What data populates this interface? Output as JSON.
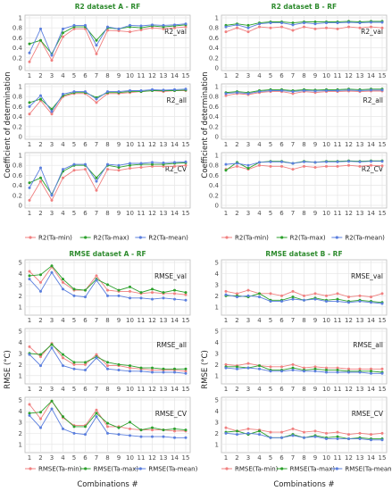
{
  "figure": {
    "blocks": [
      {
        "id": "r2a",
        "title": "R2 dataset A - RF",
        "ylabel": "",
        "xlabel": "",
        "ylim": [
          0,
          1
        ],
        "yticks": [
          "0",
          "0.2",
          "0.4",
          "0.6",
          "0.8",
          "1"
        ],
        "show_xticks": true,
        "panels": [
          "R2_val",
          "R2_all",
          "R2_CV"
        ],
        "legend": [
          "R2(Ta-min)",
          "R2(Ta-max)",
          "R2(Ta-mean)"
        ]
      },
      {
        "id": "r2b",
        "title": "R2 dataset B - RF",
        "ylabel": "",
        "xlabel": "",
        "ylim": [
          0,
          1
        ],
        "yticks": [
          "0",
          "0.2",
          "0.4",
          "0.6",
          "0.8",
          "1"
        ],
        "show_xticks": true,
        "panels": [
          "R2_val",
          "R2_all",
          "R2_CV"
        ],
        "legend": [
          "R2(Ta-min)",
          "R2(Ta-max)",
          "R2(Ta-mean)"
        ]
      },
      {
        "id": "rmsea",
        "title": "RMSE dataset A - RF",
        "ylabel": "",
        "xlabel": "Combinations #",
        "ylim": [
          0.5,
          5
        ],
        "yticks": [
          "1",
          "2",
          "3",
          "4",
          "5"
        ],
        "show_xticks": true,
        "panels": [
          "RMSE_val",
          "RMSE_all",
          "RMSE_CV"
        ],
        "legend": [
          "RMSE(Ta-min)",
          "RMSE(Ta-max)",
          "RMSE(Ta-mean)"
        ]
      },
      {
        "id": "rmseb",
        "title": "RMSE dataset B - RF",
        "ylabel": "",
        "xlabel": "Combinations #",
        "ylim": [
          0.5,
          5
        ],
        "yticks": [
          "1",
          "2",
          "3",
          "4",
          "5"
        ],
        "show_xticks": true,
        "panels": [
          "RMSE_val",
          "RMSE_all",
          "RMSE_CV"
        ],
        "legend": [
          "RMSE(Ta-min)",
          "RMSE(Ta-max)",
          "RMSE(Ta-mean)"
        ]
      }
    ],
    "row_ylabels": [
      "Coefficient of determination",
      "RMSE (°C)"
    ],
    "xticks": [
      "1",
      "2",
      "3",
      "4",
      "5",
      "6",
      "7",
      "8",
      "9",
      "10",
      "11",
      "12",
      "13",
      "14",
      "15"
    ],
    "colors": {
      "ta_min": "#f08080",
      "ta_max": "#2ca02c",
      "ta_mean": "#5b7fde"
    }
  },
  "chart_data": [
    {
      "type": "line",
      "title": "R2 dataset A - RF",
      "panel": "R2_val",
      "x": [
        1,
        2,
        3,
        4,
        5,
        6,
        7,
        8,
        9,
        10,
        11,
        12,
        13,
        14,
        15
      ],
      "ylim": [
        0,
        1
      ],
      "series": [
        {
          "name": "R2(Ta-min)",
          "values": [
            0.12,
            0.55,
            0.15,
            0.62,
            0.78,
            0.78,
            0.28,
            0.75,
            0.74,
            0.72,
            0.76,
            0.8,
            0.78,
            0.8,
            0.82
          ]
        },
        {
          "name": "R2(Ta-max)",
          "values": [
            0.48,
            0.55,
            0.28,
            0.7,
            0.82,
            0.82,
            0.55,
            0.8,
            0.78,
            0.82,
            0.8,
            0.84,
            0.82,
            0.84,
            0.86
          ]
        },
        {
          "name": "R2(Ta-mean)",
          "values": [
            0.3,
            0.78,
            0.25,
            0.78,
            0.85,
            0.85,
            0.45,
            0.82,
            0.78,
            0.85,
            0.84,
            0.86,
            0.85,
            0.86,
            0.88
          ]
        }
      ]
    },
    {
      "type": "line",
      "title": "R2 dataset A - RF",
      "panel": "R2_all",
      "x": [
        1,
        2,
        3,
        4,
        5,
        6,
        7,
        8,
        9,
        10,
        11,
        12,
        13,
        14,
        15
      ],
      "ylim": [
        0,
        1
      ],
      "series": [
        {
          "name": "R2(Ta-min)",
          "values": [
            0.45,
            0.72,
            0.45,
            0.8,
            0.86,
            0.86,
            0.68,
            0.86,
            0.86,
            0.88,
            0.9,
            0.92,
            0.9,
            0.92,
            0.92
          ]
        },
        {
          "name": "R2(Ta-max)",
          "values": [
            0.68,
            0.75,
            0.55,
            0.82,
            0.88,
            0.88,
            0.78,
            0.88,
            0.88,
            0.9,
            0.9,
            0.92,
            0.92,
            0.92,
            0.93
          ]
        },
        {
          "name": "R2(Ta-mean)",
          "values": [
            0.6,
            0.82,
            0.5,
            0.85,
            0.9,
            0.9,
            0.75,
            0.9,
            0.9,
            0.92,
            0.92,
            0.94,
            0.93,
            0.94,
            0.95
          ]
        }
      ]
    },
    {
      "type": "line",
      "title": "R2 dataset A - RF",
      "panel": "R2_CV",
      "x": [
        1,
        2,
        3,
        4,
        5,
        6,
        7,
        8,
        9,
        10,
        11,
        12,
        13,
        14,
        15
      ],
      "ylim": [
        0,
        1
      ],
      "series": [
        {
          "name": "R2(Ta-min)",
          "values": [
            0.1,
            0.48,
            0.1,
            0.55,
            0.7,
            0.72,
            0.3,
            0.72,
            0.7,
            0.74,
            0.76,
            0.78,
            0.78,
            0.78,
            0.8
          ]
        },
        {
          "name": "R2(Ta-max)",
          "values": [
            0.45,
            0.55,
            0.22,
            0.68,
            0.8,
            0.8,
            0.55,
            0.8,
            0.76,
            0.8,
            0.82,
            0.82,
            0.82,
            0.84,
            0.85
          ]
        },
        {
          "name": "R2(Ta-mean)",
          "values": [
            0.35,
            0.75,
            0.2,
            0.72,
            0.82,
            0.82,
            0.48,
            0.82,
            0.8,
            0.84,
            0.84,
            0.86,
            0.85,
            0.86,
            0.87
          ]
        }
      ]
    },
    {
      "type": "line",
      "title": "R2 dataset B - RF",
      "panel": "R2_val",
      "x": [
        1,
        2,
        3,
        4,
        5,
        6,
        7,
        8,
        9,
        10,
        11,
        12,
        13,
        14,
        15
      ],
      "ylim": [
        0,
        1
      ],
      "series": [
        {
          "name": "R2(Ta-min)",
          "values": [
            0.72,
            0.8,
            0.72,
            0.82,
            0.8,
            0.82,
            0.75,
            0.82,
            0.78,
            0.8,
            0.78,
            0.82,
            0.8,
            0.82,
            0.8
          ]
        },
        {
          "name": "R2(Ta-max)",
          "values": [
            0.85,
            0.88,
            0.85,
            0.9,
            0.92,
            0.92,
            0.9,
            0.92,
            0.92,
            0.92,
            0.92,
            0.93,
            0.92,
            0.93,
            0.93
          ]
        },
        {
          "name": "R2(Ta-mean)",
          "values": [
            0.82,
            0.86,
            0.8,
            0.88,
            0.9,
            0.9,
            0.86,
            0.9,
            0.88,
            0.9,
            0.9,
            0.91,
            0.9,
            0.91,
            0.91
          ]
        }
      ]
    },
    {
      "type": "line",
      "title": "R2 dataset B - RF",
      "panel": "R2_all",
      "x": [
        1,
        2,
        3,
        4,
        5,
        6,
        7,
        8,
        9,
        10,
        11,
        12,
        13,
        14,
        15
      ],
      "ylim": [
        0,
        1
      ],
      "series": [
        {
          "name": "R2(Ta-min)",
          "values": [
            0.82,
            0.86,
            0.84,
            0.88,
            0.9,
            0.9,
            0.86,
            0.9,
            0.88,
            0.9,
            0.9,
            0.91,
            0.9,
            0.91,
            0.91
          ]
        },
        {
          "name": "R2(Ta-max)",
          "values": [
            0.88,
            0.9,
            0.88,
            0.92,
            0.94,
            0.94,
            0.92,
            0.94,
            0.93,
            0.94,
            0.94,
            0.95,
            0.94,
            0.95,
            0.95
          ]
        },
        {
          "name": "R2(Ta-mean)",
          "values": [
            0.86,
            0.88,
            0.86,
            0.9,
            0.92,
            0.92,
            0.9,
            0.92,
            0.91,
            0.92,
            0.92,
            0.93,
            0.92,
            0.93,
            0.93
          ]
        }
      ]
    },
    {
      "type": "line",
      "title": "R2 dataset B - RF",
      "panel": "R2_CV",
      "x": [
        1,
        2,
        3,
        4,
        5,
        6,
        7,
        8,
        9,
        10,
        11,
        12,
        13,
        14,
        15
      ],
      "ylim": [
        0,
        1
      ],
      "series": [
        {
          "name": "R2(Ta-min)",
          "values": [
            0.72,
            0.78,
            0.72,
            0.8,
            0.78,
            0.78,
            0.72,
            0.78,
            0.76,
            0.78,
            0.78,
            0.8,
            0.78,
            0.8,
            0.79
          ]
        },
        {
          "name": "R2(Ta-max)",
          "values": [
            0.7,
            0.86,
            0.74,
            0.86,
            0.88,
            0.88,
            0.84,
            0.88,
            0.86,
            0.88,
            0.88,
            0.89,
            0.88,
            0.89,
            0.89
          ]
        },
        {
          "name": "R2(Ta-mean)",
          "values": [
            0.82,
            0.84,
            0.8,
            0.86,
            0.87,
            0.87,
            0.84,
            0.87,
            0.86,
            0.87,
            0.87,
            0.88,
            0.87,
            0.88,
            0.88
          ]
        }
      ]
    },
    {
      "type": "line",
      "title": "RMSE dataset A - RF",
      "panel": "RMSE_val",
      "x": [
        1,
        2,
        3,
        4,
        5,
        6,
        7,
        8,
        9,
        10,
        11,
        12,
        13,
        14,
        15
      ],
      "ylim": [
        0.5,
        5
      ],
      "series": [
        {
          "name": "RMSE(Ta-min)",
          "values": [
            4.2,
            3.2,
            4.6,
            3.2,
            2.5,
            2.5,
            3.8,
            2.5,
            2.4,
            2.4,
            2.2,
            2.3,
            2.2,
            2.2,
            2.1
          ]
        },
        {
          "name": "RMSE(Ta-max)",
          "values": [
            3.8,
            3.9,
            4.7,
            3.5,
            2.6,
            2.5,
            3.5,
            3.0,
            2.5,
            2.8,
            2.3,
            2.6,
            2.3,
            2.5,
            2.3
          ]
        },
        {
          "name": "RMSE(Ta-mean)",
          "values": [
            3.5,
            2.4,
            4.1,
            2.6,
            2.0,
            1.9,
            3.4,
            2.0,
            2.0,
            1.8,
            1.8,
            1.7,
            1.8,
            1.7,
            1.6
          ]
        }
      ]
    },
    {
      "type": "line",
      "title": "RMSE dataset A - RF",
      "panel": "RMSE_all",
      "x": [
        1,
        2,
        3,
        4,
        5,
        6,
        7,
        8,
        9,
        10,
        11,
        12,
        13,
        14,
        15
      ],
      "ylim": [
        0.5,
        5
      ],
      "series": [
        {
          "name": "RMSE(Ta-min)",
          "values": [
            3.6,
            2.7,
            3.9,
            2.6,
            2.0,
            2.0,
            2.9,
            1.9,
            1.9,
            1.7,
            1.6,
            1.5,
            1.5,
            1.5,
            1.4
          ]
        },
        {
          "name": "RMSE(Ta-max)",
          "values": [
            3.0,
            2.9,
            3.8,
            2.9,
            2.2,
            2.2,
            2.7,
            2.2,
            2.0,
            1.9,
            1.7,
            1.7,
            1.6,
            1.6,
            1.6
          ]
        },
        {
          "name": "RMSE(Ta-mean)",
          "values": [
            2.9,
            1.9,
            3.5,
            1.9,
            1.6,
            1.5,
            2.6,
            1.6,
            1.5,
            1.4,
            1.4,
            1.3,
            1.3,
            1.3,
            1.2
          ]
        }
      ]
    },
    {
      "type": "line",
      "title": "RMSE dataset A - RF",
      "panel": "RMSE_CV",
      "x": [
        1,
        2,
        3,
        4,
        5,
        6,
        7,
        8,
        9,
        10,
        11,
        12,
        13,
        14,
        15
      ],
      "ylim": [
        0.5,
        5
      ],
      "series": [
        {
          "name": "RMSE(Ta-min)",
          "values": [
            4.6,
            3.3,
            4.9,
            3.4,
            2.7,
            2.7,
            4.1,
            2.6,
            2.6,
            2.4,
            2.3,
            2.3,
            2.3,
            2.2,
            2.2
          ]
        },
        {
          "name": "RMSE(Ta-max)",
          "values": [
            3.8,
            3.9,
            4.9,
            3.5,
            2.6,
            2.6,
            3.8,
            2.9,
            2.5,
            3.0,
            2.3,
            2.5,
            2.3,
            2.4,
            2.3
          ]
        },
        {
          "name": "RMSE(Ta-mean)",
          "values": [
            3.6,
            2.5,
            4.2,
            2.4,
            2.0,
            1.9,
            3.5,
            2.0,
            1.9,
            1.8,
            1.7,
            1.7,
            1.7,
            1.6,
            1.6
          ]
        }
      ]
    },
    {
      "type": "line",
      "title": "RMSE dataset B - RF",
      "panel": "RMSE_val",
      "x": [
        1,
        2,
        3,
        4,
        5,
        6,
        7,
        8,
        9,
        10,
        11,
        12,
        13,
        14,
        15
      ],
      "ylim": [
        0.5,
        5
      ],
      "series": [
        {
          "name": "RMSE(Ta-min)",
          "values": [
            2.4,
            2.2,
            2.5,
            2.2,
            2.2,
            2.0,
            2.4,
            2.0,
            2.2,
            2.0,
            2.2,
            1.9,
            2.0,
            1.9,
            2.2
          ]
        },
        {
          "name": "RMSE(Ta-max)",
          "values": [
            2.0,
            2.0,
            1.9,
            2.2,
            1.6,
            1.6,
            1.9,
            1.6,
            1.8,
            1.6,
            1.7,
            1.5,
            1.6,
            1.5,
            1.4
          ]
        },
        {
          "name": "RMSE(Ta-mean)",
          "values": [
            2.1,
            1.9,
            2.0,
            1.9,
            1.5,
            1.5,
            1.7,
            1.6,
            1.7,
            1.5,
            1.5,
            1.4,
            1.5,
            1.4,
            1.3
          ]
        }
      ]
    },
    {
      "type": "line",
      "title": "RMSE dataset B - RF",
      "panel": "RMSE_all",
      "x": [
        1,
        2,
        3,
        4,
        5,
        6,
        7,
        8,
        9,
        10,
        11,
        12,
        13,
        14,
        15
      ],
      "ylim": [
        0.5,
        5
      ],
      "series": [
        {
          "name": "RMSE(Ta-min)",
          "values": [
            2.0,
            1.9,
            2.1,
            1.9,
            1.8,
            1.8,
            2.0,
            1.7,
            1.8,
            1.7,
            1.7,
            1.6,
            1.6,
            1.6,
            1.6
          ]
        },
        {
          "name": "RMSE(Ta-max)",
          "values": [
            1.8,
            1.8,
            1.7,
            1.9,
            1.5,
            1.5,
            1.7,
            1.5,
            1.6,
            1.5,
            1.5,
            1.4,
            1.4,
            1.4,
            1.3
          ]
        },
        {
          "name": "RMSE(Ta-mean)",
          "values": [
            1.7,
            1.6,
            1.7,
            1.6,
            1.4,
            1.4,
            1.5,
            1.4,
            1.4,
            1.3,
            1.3,
            1.3,
            1.3,
            1.2,
            1.2
          ]
        }
      ]
    },
    {
      "type": "line",
      "title": "RMSE dataset B - RF",
      "panel": "RMSE_CV",
      "x": [
        1,
        2,
        3,
        4,
        5,
        6,
        7,
        8,
        9,
        10,
        11,
        12,
        13,
        14,
        15
      ],
      "ylim": [
        0.5,
        5
      ],
      "series": [
        {
          "name": "RMSE(Ta-min)",
          "values": [
            2.5,
            2.2,
            2.4,
            2.3,
            2.1,
            2.1,
            2.4,
            2.1,
            2.2,
            2.0,
            2.1,
            1.9,
            2.0,
            1.9,
            2.0
          ]
        },
        {
          "name": "RMSE(Ta-max)",
          "values": [
            2.1,
            2.2,
            1.9,
            2.2,
            1.6,
            1.6,
            1.9,
            1.6,
            1.8,
            1.6,
            1.7,
            1.5,
            1.6,
            1.5,
            1.5
          ]
        },
        {
          "name": "RMSE(Ta-mean)",
          "values": [
            2.0,
            1.9,
            2.0,
            1.9,
            1.6,
            1.6,
            1.8,
            1.6,
            1.7,
            1.5,
            1.5,
            1.5,
            1.5,
            1.4,
            1.4
          ]
        }
      ]
    }
  ]
}
